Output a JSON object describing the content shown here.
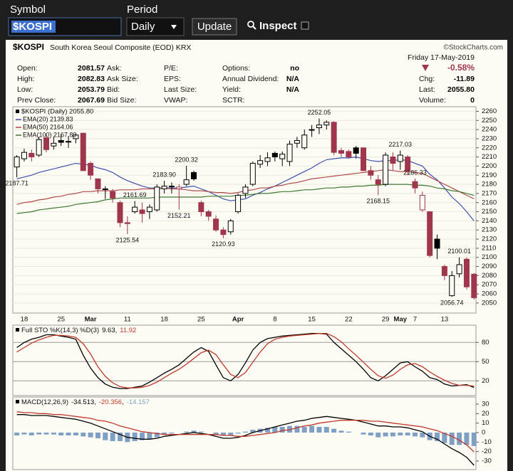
{
  "toolbar": {
    "symbol_label": "Symbol",
    "symbol": "$KOSPI",
    "period_label": "Period",
    "period": "Daily",
    "update": "Update",
    "inspect": "Inspect"
  },
  "quote": {
    "date": "Friday 17-May-2019",
    "change_pct": "-0.58%",
    "columns": [
      [
        {
          "label": "Open:",
          "value": "2081.57"
        },
        {
          "label": "High:",
          "value": "2082.83"
        },
        {
          "label": "Low:",
          "value": "2053.79"
        },
        {
          "label": "Prev Close:",
          "value": "2067.69"
        }
      ],
      [
        {
          "label": "Ask:"
        },
        {
          "label": "Ask Size:"
        },
        {
          "label": "Bid:"
        },
        {
          "label": "Bid Size:"
        }
      ],
      [
        {
          "label": "P/E:"
        },
        {
          "label": "EPS:"
        },
        {
          "label": "Last Size:"
        },
        {
          "label": "VWAP:"
        }
      ],
      [
        {
          "label": "Options:",
          "value": "no"
        },
        {
          "label": "Annual Dividend:",
          "value": "N/A"
        },
        {
          "label": "Yield:",
          "value": "N/A"
        },
        {
          "label": "SCTR:"
        }
      ]
    ],
    "right": [
      {
        "label": "Chg:",
        "value": "-11.89"
      },
      {
        "label": "Last:",
        "value": "2055.80"
      },
      {
        "label": "Volume:",
        "value": "0"
      }
    ]
  },
  "chart_data": [
    {
      "type": "candlestick",
      "title": "$KOSPI",
      "subtitle": "South Korea Seoul Composite (EOD) KRX",
      "credit": "©StockCharts.com",
      "legend_label": "$KOSPI (Daily) 2055.80",
      "up_color": "#000000",
      "down_color": "#a0364c",
      "grid": true,
      "categories": [
        null,
        "18",
        null,
        null,
        null,
        null,
        "25",
        null,
        null,
        null,
        "Mar",
        null,
        null,
        null,
        null,
        "11",
        null,
        null,
        null,
        null,
        "18",
        null,
        null,
        null,
        null,
        "25",
        null,
        null,
        null,
        null,
        "Apr",
        null,
        null,
        null,
        null,
        "8",
        null,
        null,
        null,
        null,
        "15",
        null,
        null,
        null,
        null,
        "22",
        null,
        null,
        null,
        null,
        "29",
        null,
        "May",
        null,
        "7",
        null,
        null,
        null,
        "13",
        null,
        null,
        null,
        null
      ],
      "open": [
        2199,
        2208,
        2214,
        2212,
        2231,
        2222,
        2228,
        2227,
        2230,
        2236,
        2203,
        2186,
        2175,
        2172,
        2160,
        2138,
        2150,
        2152,
        2150,
        2152,
        2175,
        2178,
        2175,
        2180,
        2193,
        2160,
        2150,
        2142,
        2130,
        2128,
        2150,
        2170,
        2180,
        2202,
        2205,
        2214,
        2208,
        2205,
        2225,
        2220,
        2240,
        2242,
        2245,
        2248,
        2217,
        2216,
        2220,
        2220,
        2195,
        2185,
        2180,
        2210,
        2205,
        2210,
        2183,
        2152,
        2150,
        2120,
        2090,
        2058,
        2082,
        2098,
        2081.57
      ],
      "high": [
        2212,
        2219,
        2218,
        2232,
        2235,
        2232,
        2235,
        2233,
        2236,
        2236,
        2205,
        2186,
        2178,
        2175,
        2162,
        2145,
        2161.69,
        2160,
        2158,
        2180,
        2183.9,
        2182,
        2180,
        2200.32,
        2195,
        2162,
        2152,
        2146,
        2133,
        2142,
        2170,
        2180,
        2205,
        2212,
        2215,
        2216,
        2216,
        2228,
        2232,
        2240,
        2245,
        2252.05,
        2250,
        2249,
        2220,
        2218,
        2222,
        2220,
        2200,
        2190,
        2215,
        2215,
        2217.03,
        2212,
        2186.33,
        2172,
        2150,
        2125,
        2092,
        2085,
        2100.01,
        2100,
        2082.83
      ],
      "low": [
        2187.71,
        2205,
        2205,
        2210,
        2215,
        2218,
        2222,
        2220,
        2225,
        2195,
        2185,
        2170,
        2164,
        2160,
        2133,
        2125.54,
        2148,
        2138,
        2142,
        2150,
        2170,
        2170,
        2152.21,
        2178,
        2184,
        2145,
        2140,
        2128,
        2120.93,
        2125,
        2148,
        2165,
        2178,
        2198,
        2200,
        2205,
        2200,
        2200,
        2220,
        2218,
        2232,
        2235,
        2240,
        2212,
        2210,
        2208,
        2208,
        2195,
        2185,
        2168.15,
        2178,
        2195,
        2196,
        2190,
        2170,
        2150,
        2100,
        2098,
        2075,
        2056.74,
        2078,
        2065,
        2053.79
      ],
      "close": [
        2210,
        2215,
        2210,
        2229,
        2218,
        2225,
        2226,
        2227,
        2234,
        2195,
        2190,
        2175,
        2175,
        2165,
        2138,
        2137,
        2155,
        2148,
        2155,
        2177,
        2178,
        2178,
        2177,
        2185,
        2186,
        2150,
        2145,
        2130,
        2125,
        2140,
        2168,
        2177,
        2203,
        2206,
        2209,
        2210,
        2213,
        2224,
        2228,
        2234,
        2240,
        2245,
        2248,
        2215,
        2214,
        2210,
        2214,
        2195,
        2190,
        2180,
        2212,
        2203,
        2212,
        2195,
        2176,
        2168,
        2102,
        2110,
        2080,
        2080,
        2092,
        2067.69,
        2055.8
      ],
      "series": [
        {
          "name": "EMA(20) 2139.83",
          "color": "#3d4fb0",
          "values": [
            2186,
            2188,
            2190,
            2193,
            2195,
            2197,
            2199,
            2201,
            2203,
            2202,
            2201,
            2198,
            2196,
            2193,
            2188,
            2184,
            2181,
            2178,
            2176,
            2176,
            2176,
            2176,
            2176,
            2177,
            2178,
            2175,
            2172,
            2168,
            2164,
            2162,
            2163,
            2164,
            2168,
            2171,
            2175,
            2178,
            2182,
            2186,
            2190,
            2194,
            2198,
            2203,
            2207,
            2208,
            2209,
            2209,
            2210,
            2208,
            2206,
            2205,
            2206,
            2206,
            2207,
            2206,
            2203,
            2200,
            2191,
            2185,
            2176,
            2166,
            2159,
            2150,
            2139.83
          ]
        },
        {
          "name": "EMA(50) 2164.06",
          "color": "#b04a4a",
          "values": [
            2158,
            2160,
            2161,
            2163,
            2164,
            2166,
            2167,
            2169,
            2170,
            2172,
            2172,
            2173,
            2173,
            2173,
            2174,
            2174,
            2174,
            2175,
            2175,
            2175,
            2176,
            2175,
            2175,
            2174,
            2173,
            2173,
            2172,
            2171,
            2171,
            2170,
            2171,
            2173,
            2174,
            2176,
            2176,
            2178,
            2179,
            2181,
            2182,
            2184,
            2186,
            2187,
            2188,
            2189,
            2190,
            2191,
            2192,
            2193,
            2194,
            2195,
            2196,
            2195,
            2194,
            2194,
            2193,
            2192,
            2188,
            2184,
            2180,
            2176,
            2172,
            2168,
            2164.06
          ]
        },
        {
          "name": "EMA(100) 2167.89",
          "color": "#3e7a32",
          "values": [
            2148,
            2149,
            2150,
            2152,
            2153,
            2154,
            2155,
            2156,
            2158,
            2159,
            2160,
            2161,
            2163,
            2164,
            2165,
            2165,
            2165,
            2165,
            2165,
            2166,
            2166,
            2166,
            2166,
            2166,
            2166,
            2166,
            2167,
            2167,
            2167,
            2167,
            2168,
            2168,
            2169,
            2170,
            2170,
            2171,
            2172,
            2172,
            2173,
            2174,
            2174,
            2175,
            2176,
            2176,
            2177,
            2177,
            2178,
            2178,
            2179,
            2179,
            2180,
            2180,
            2180,
            2180,
            2179,
            2179,
            2178,
            2176,
            2175,
            2173,
            2172,
            2170,
            2167.89
          ]
        }
      ],
      "annotations": [
        {
          "value": 2187.71,
          "label": "2187.71"
        },
        {
          "value": 2161.69,
          "label": "2161.69"
        },
        {
          "value": 2125.54,
          "label": "2125.54"
        },
        {
          "value": 2183.9,
          "label": "2183.90"
        },
        {
          "value": 2152.21,
          "label": "2152.21"
        },
        {
          "value": 2200.32,
          "label": "2200.32"
        },
        {
          "value": 2120.93,
          "label": "2120.93"
        },
        {
          "value": 2252.05,
          "label": "2252.05"
        },
        {
          "value": 2168.15,
          "label": "2168.15"
        },
        {
          "value": 2217.03,
          "label": "2217.03"
        },
        {
          "value": 2186.33,
          "label": "2186.33"
        },
        {
          "value": 2100.01,
          "label": "2100.01"
        },
        {
          "value": 2056.74,
          "label": "2056.74"
        }
      ],
      "ylim": [
        2039,
        2265
      ],
      "yticks": [
        2050,
        2060,
        2070,
        2080,
        2090,
        2100,
        2110,
        2120,
        2130,
        2140,
        2150,
        2160,
        2170,
        2180,
        2190,
        2200,
        2210,
        2220,
        2230,
        2240,
        2250,
        2260
      ]
    },
    {
      "type": "line",
      "title": "Full STO %K(14,3) %D(3)",
      "separator": ",",
      "grid": true,
      "series": [
        {
          "color": "#000000",
          "values": [
            72,
            80,
            85,
            88,
            92,
            92,
            90,
            88,
            85,
            60,
            40,
            25,
            15,
            10,
            8,
            8,
            10,
            12,
            18,
            25,
            32,
            38,
            45,
            55,
            65,
            72,
            66,
            45,
            25,
            20,
            30,
            48,
            68,
            80,
            86,
            88,
            90,
            91,
            92,
            93,
            94,
            94,
            93,
            80,
            70,
            60,
            50,
            38,
            25,
            20,
            28,
            38,
            48,
            50,
            42,
            35,
            25,
            22,
            15,
            12,
            13,
            14,
            9.63
          ]
        },
        {
          "color": "#c0392b",
          "values": [
            65,
            72,
            79,
            84,
            88,
            91,
            91,
            90,
            88,
            78,
            62,
            42,
            27,
            17,
            11,
            9,
            9,
            10,
            13,
            18,
            25,
            32,
            38,
            46,
            55,
            64,
            68,
            61,
            45,
            30,
            25,
            33,
            49,
            65,
            78,
            85,
            88,
            90,
            91,
            92,
            93,
            94,
            94,
            89,
            81,
            70,
            60,
            49,
            38,
            28,
            24,
            29,
            38,
            45,
            47,
            42,
            34,
            27,
            21,
            16,
            13,
            13,
            11.92
          ]
        }
      ],
      "ylim": [
        -3,
        107
      ],
      "yticks": [
        80,
        50,
        20
      ]
    },
    {
      "type": "line",
      "title": "MACD(12,26,9)",
      "separator": ",",
      "series": [
        {
          "color": "#000000",
          "values": [
            19,
            19,
            18,
            18,
            18,
            17,
            16,
            15,
            14,
            12,
            10,
            7,
            4,
            1,
            -2,
            -5,
            -6,
            -7,
            -7,
            -6,
            -4,
            -3,
            -2,
            -1,
            0,
            -1,
            -2,
            -4,
            -6,
            -6,
            -5,
            -3,
            0,
            2,
            4,
            6,
            8,
            10,
            12,
            13,
            15,
            16,
            17,
            16,
            15,
            14,
            13,
            11,
            9,
            7,
            7,
            6,
            6,
            5,
            3,
            1,
            -4,
            -7,
            -12,
            -17,
            -21,
            -26,
            -34.513
          ]
        },
        {
          "color": "#c0392b",
          "values": [
            22,
            21,
            21,
            20,
            20,
            19,
            19,
            18,
            17,
            16,
            15,
            13,
            12,
            10,
            7,
            5,
            3,
            1,
            0,
            -1,
            -2,
            -2,
            -2,
            -2,
            -2,
            -2,
            -2,
            -2,
            -3,
            -3,
            -4,
            -4,
            -3,
            -2,
            -1,
            0,
            2,
            3,
            5,
            7,
            8,
            10,
            11,
            12,
            13,
            13,
            13,
            13,
            12,
            12,
            11,
            10,
            9,
            8,
            7,
            6,
            4,
            2,
            -1,
            -4,
            -8,
            -13,
            -20.356
          ]
        },
        {
          "type": "bar",
          "color": "#7f9fc4",
          "values": [
            -3,
            -2,
            -3,
            -2,
            -2,
            -2,
            -3,
            -3,
            -3,
            -4,
            -5,
            -6,
            -8,
            -9,
            -9,
            -10,
            -9,
            -8,
            -7,
            -5,
            -2,
            -1,
            0,
            1,
            2,
            1,
            0,
            -2,
            -3,
            -3,
            -1,
            1,
            3,
            4,
            5,
            6,
            6,
            7,
            7,
            6,
            7,
            6,
            6,
            4,
            2,
            1,
            0,
            -2,
            -3,
            -5,
            -4,
            -4,
            -3,
            -3,
            -4,
            -5,
            -8,
            -9,
            -11,
            -13,
            -13,
            -13,
            -14.157
          ]
        }
      ],
      "ylim": [
        -39,
        37.5
      ],
      "yticks": [
        30,
        20,
        10,
        0,
        -10,
        -20,
        -30
      ]
    }
  ]
}
